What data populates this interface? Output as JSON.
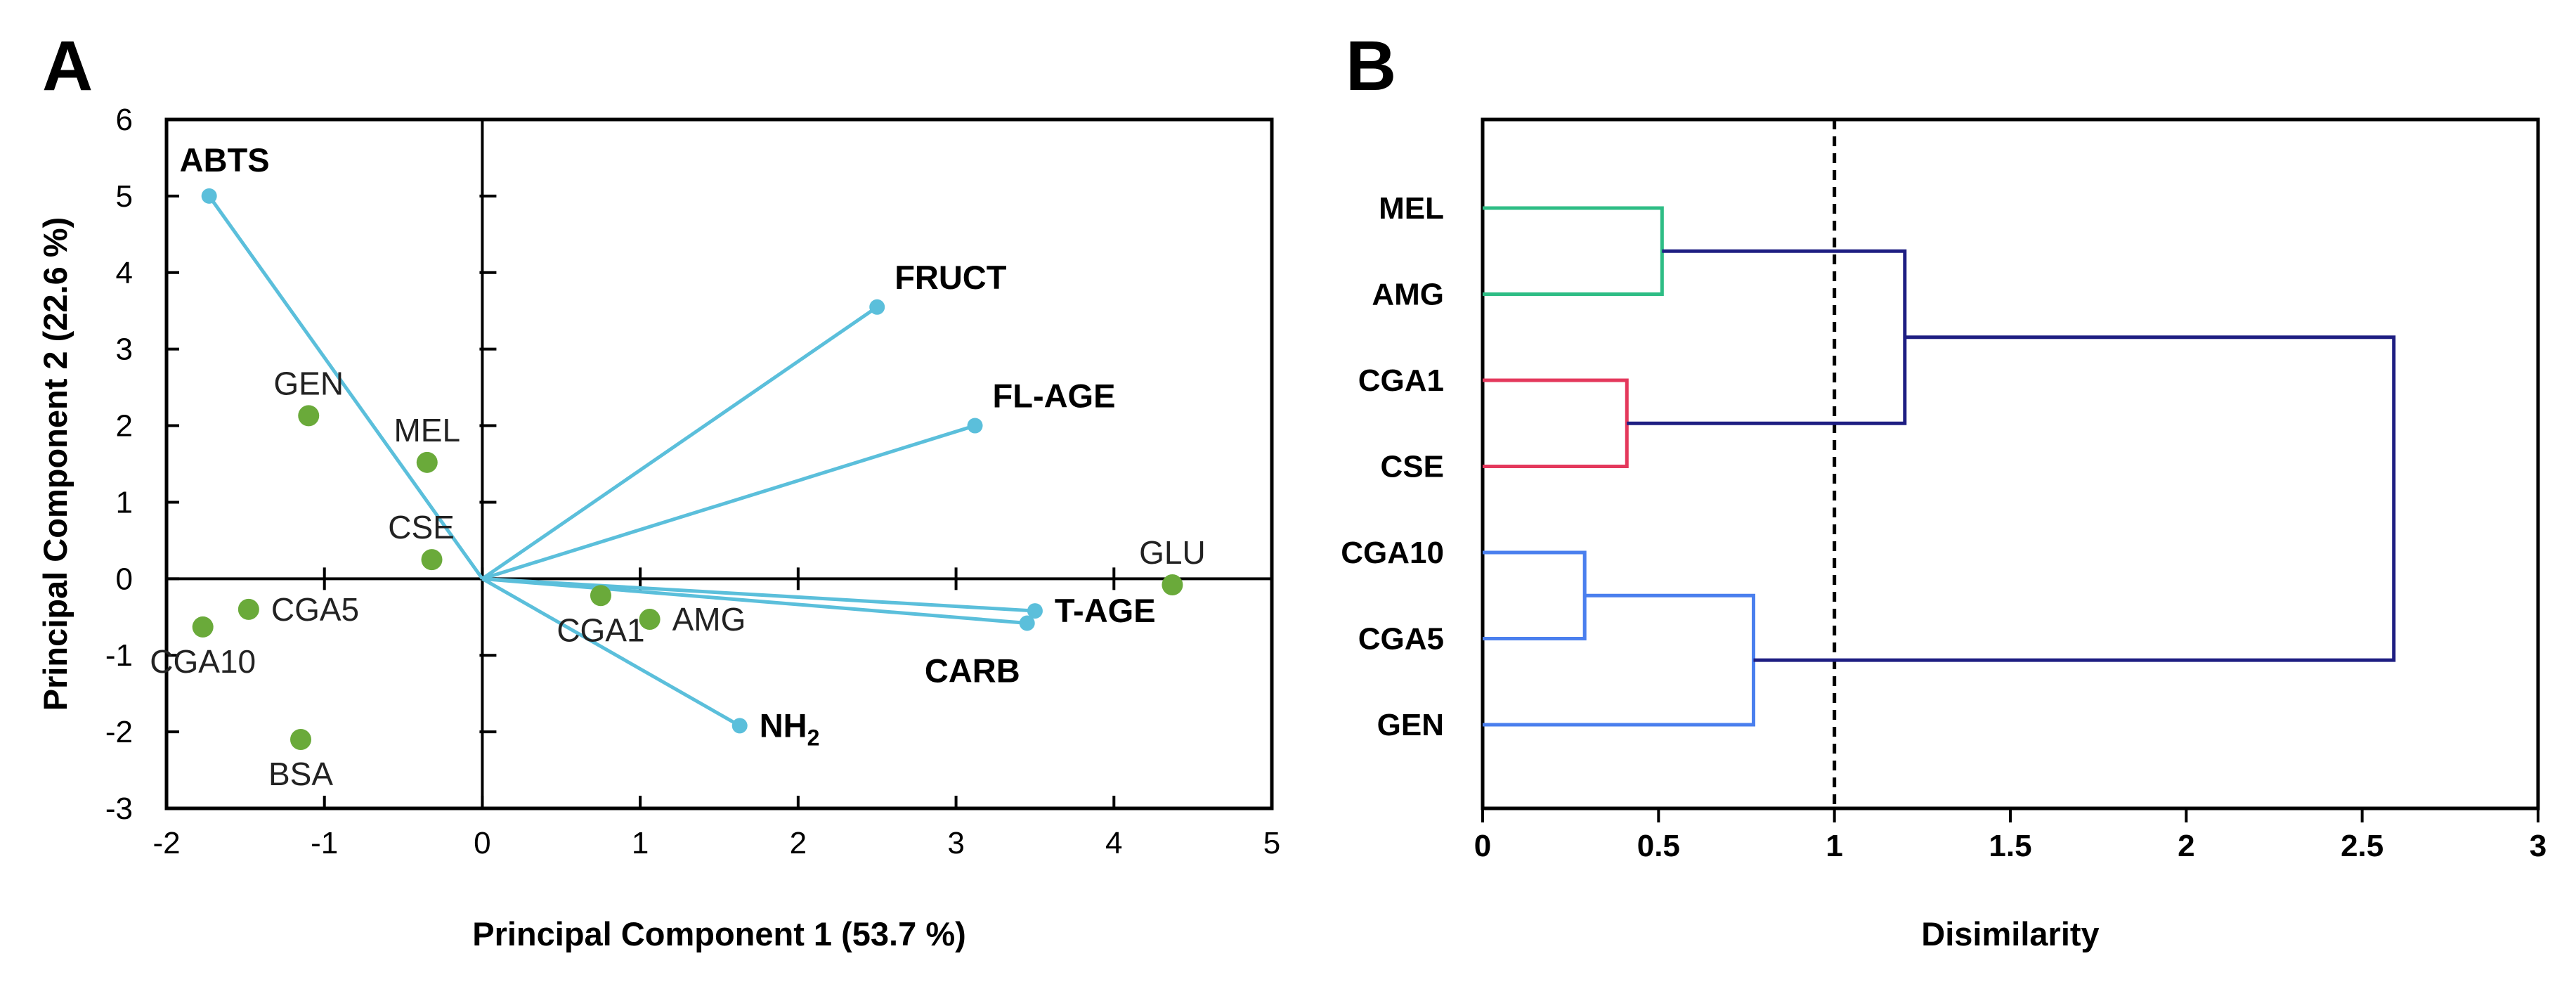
{
  "chart_data": [
    {
      "panel": "A",
      "type": "scatter",
      "subtype": "pca-biplot",
      "xlabel": "Principal Component 1 (53.7 %)",
      "ylabel": "Principal Component 2 (22.6 %)",
      "xlim": [
        -2,
        5
      ],
      "ylim": [
        -3,
        6
      ],
      "xticks": [
        -2,
        -1,
        0,
        1,
        2,
        3,
        4,
        5
      ],
      "yticks": [
        -3,
        -2,
        -1,
        0,
        1,
        2,
        3,
        4,
        5,
        6
      ],
      "vector_color": "#5bbfdb",
      "point_color": "#6aaa3a",
      "variables": [
        {
          "name": "ABTS",
          "x": -1.73,
          "y": 5.0,
          "label_pos": "above"
        },
        {
          "name": "FRUCT",
          "x": 2.5,
          "y": 3.55,
          "label_pos": "upper-right"
        },
        {
          "name": "FL-AGE",
          "x": 3.12,
          "y": 2.0,
          "label_pos": "upper-right"
        },
        {
          "name": "T-AGE",
          "x": 3.5,
          "y": -0.42,
          "label_pos": "right"
        },
        {
          "name": "CARB",
          "x": 3.45,
          "y": -0.58,
          "label_pos": "below-left"
        },
        {
          "name": "NH",
          "sub": "2",
          "x": 1.63,
          "y": -1.92,
          "label_pos": "right"
        }
      ],
      "observations": [
        {
          "name": "GEN",
          "x": -1.1,
          "y": 2.13,
          "label_pos": "above"
        },
        {
          "name": "MEL",
          "x": -0.35,
          "y": 1.52,
          "label_pos": "above"
        },
        {
          "name": "CSE",
          "x": -0.32,
          "y": 0.25,
          "label_pos": "above-left"
        },
        {
          "name": "CGA5",
          "x": -1.48,
          "y": -0.4,
          "label_pos": "right"
        },
        {
          "name": "CGA10",
          "x": -1.77,
          "y": -0.63,
          "label_pos": "below"
        },
        {
          "name": "BSA",
          "x": -1.15,
          "y": -2.1,
          "label_pos": "below"
        },
        {
          "name": "CGA1",
          "x": 0.75,
          "y": -0.22,
          "label_pos": "below"
        },
        {
          "name": "AMG",
          "x": 1.06,
          "y": -0.53,
          "label_pos": "right"
        },
        {
          "name": "GLU",
          "x": 4.37,
          "y": -0.08,
          "label_pos": "above"
        }
      ]
    },
    {
      "panel": "B",
      "type": "dendrogram",
      "xlabel": "Disimilarity",
      "xlim": [
        0,
        3
      ],
      "xticks": [
        0,
        0.5,
        1,
        1.5,
        2,
        2.5,
        3
      ],
      "cutoff": 1,
      "leaves": [
        "MEL",
        "AMG",
        "CGA1",
        "CSE",
        "CGA10",
        "CGA5",
        "GEN"
      ],
      "merges": [
        {
          "a": "MEL",
          "b": "AMG",
          "height": 0.51,
          "id": "c1",
          "color": "#2ebd85"
        },
        {
          "a": "CGA1",
          "b": "CSE",
          "height": 0.41,
          "id": "c2",
          "color": "#e4385c"
        },
        {
          "a": "CGA10",
          "b": "CGA5",
          "height": 0.29,
          "id": "c3",
          "color": "#4a7fee"
        },
        {
          "a": "c3",
          "b": "GEN",
          "height": 0.77,
          "id": "c4",
          "color": "#4a7fee"
        },
        {
          "a": "c1",
          "b": "c2",
          "height": 1.2,
          "id": "c5",
          "color": "#1e1e82"
        },
        {
          "a": "c5",
          "b": "c4",
          "height": 2.59,
          "id": "c6",
          "color": "#1e1e82"
        }
      ]
    }
  ]
}
